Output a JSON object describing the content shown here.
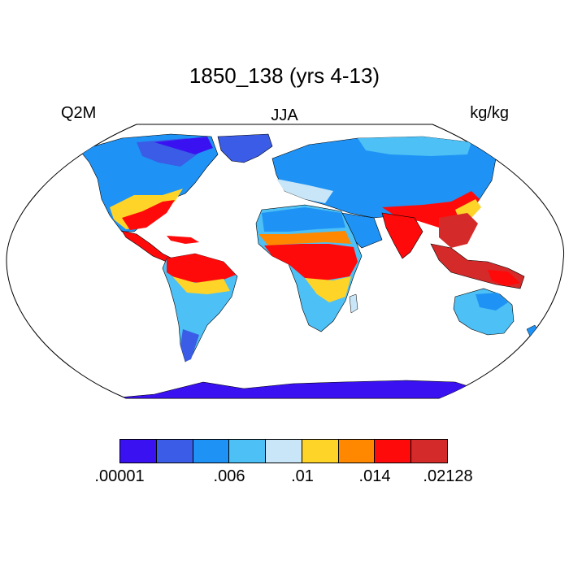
{
  "title": "1850_138 (yrs 4-13)",
  "left_label": "Q2M",
  "center_label": "JJA",
  "right_label": "kg/kg",
  "colorbar": {
    "colors": [
      "#3a12f2",
      "#3a5ce6",
      "#1e93f5",
      "#4dc0f5",
      "#c8e6f7",
      "#ffd429",
      "#ff8800",
      "#ff0a0a",
      "#d42a2a"
    ],
    "tick_labels": [
      ".00001",
      ".006",
      ".01",
      ".014",
      ".02128"
    ]
  }
}
